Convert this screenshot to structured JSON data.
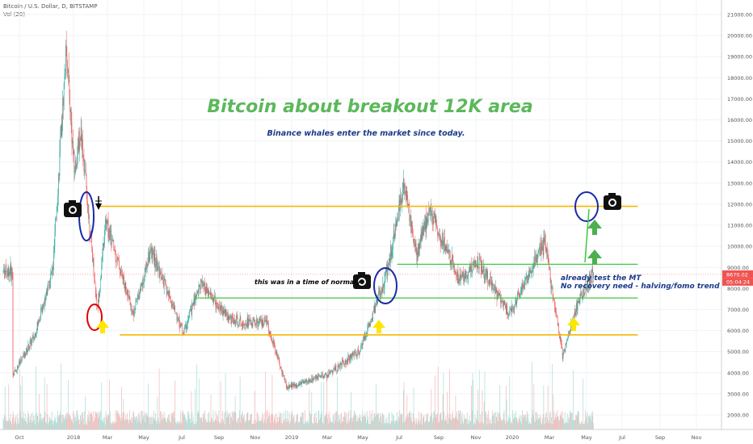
{
  "header": {
    "symbol": "Bitcoin / U.S. Dollar, D, BITSTAMP",
    "volume": "Vol (20)"
  },
  "colors": {
    "up": "#26a69a",
    "down": "#ef5350",
    "orange_line": "#f5b800",
    "green_line": "#3fc93f",
    "circle_blue": "#1a2aa8",
    "circle_red": "#e00000",
    "arrow_yellow": "#ffe600",
    "arrow_green": "#4caf50",
    "price_tag": "#ef5350"
  },
  "chart_data": {
    "type": "candlestick",
    "title": "Bitcoin about breakout 12K area",
    "subtitle": "Binance whales enter the market since today.",
    "x_ticks": [
      "Oct",
      "2018",
      "Mar",
      "May",
      "Jul",
      "Sep",
      "Nov",
      "2019",
      "Mar",
      "May",
      "Jul",
      "Sep",
      "Nov",
      "2020",
      "Mar",
      "May",
      "Jul",
      "Sep",
      "Nov"
    ],
    "y_ticks": [
      2000,
      3000,
      4000,
      5000,
      6000,
      7000,
      8000,
      9000,
      10000,
      11000,
      12000,
      13000,
      14000,
      15000,
      16000,
      17000,
      18000,
      19000,
      20000,
      21000
    ],
    "y_tick_labels": [
      "2000.00",
      "3000.00",
      "4000.00",
      "5000.00",
      "6000.00",
      "7000.00",
      "8000.00",
      "9000.00",
      "10000.00",
      "11000.00",
      "12000.00",
      "13000.00",
      "14000.00",
      "15000.00",
      "16000.00",
      "17000.00",
      "18000.00",
      "19000.00",
      "20000.00",
      "21000.00"
    ],
    "ylim": [
      1500,
      21500
    ],
    "current_price": "8670.02",
    "countdown": "05:04:24",
    "key_points": [
      {
        "date": "2017-09-20",
        "price": 3900
      },
      {
        "date": "2017-10-25",
        "price": 5700
      },
      {
        "date": "2017-11-25",
        "price": 9000
      },
      {
        "date": "2017-12-17",
        "price": 19500
      },
      {
        "date": "2017-12-30",
        "price": 13500
      },
      {
        "date": "2018-01-10",
        "price": 15500
      },
      {
        "date": "2018-02-06",
        "price": 7000
      },
      {
        "date": "2018-02-20",
        "price": 11200
      },
      {
        "date": "2018-04-06",
        "price": 6800
      },
      {
        "date": "2018-05-05",
        "price": 9800
      },
      {
        "date": "2018-06-28",
        "price": 5900
      },
      {
        "date": "2018-07-25",
        "price": 8200
      },
      {
        "date": "2018-09-15",
        "price": 6500
      },
      {
        "date": "2018-11-13",
        "price": 6300
      },
      {
        "date": "2018-12-15",
        "price": 3300
      },
      {
        "date": "2019-02-20",
        "price": 3900
      },
      {
        "date": "2019-04-15",
        "price": 5100
      },
      {
        "date": "2019-05-28",
        "price": 8700
      },
      {
        "date": "2019-06-26",
        "price": 13000
      },
      {
        "date": "2019-07-17",
        "price": 9600
      },
      {
        "date": "2019-08-07",
        "price": 11800
      },
      {
        "date": "2019-09-25",
        "price": 8400
      },
      {
        "date": "2019-10-25",
        "price": 9300
      },
      {
        "date": "2019-12-17",
        "price": 6800
      },
      {
        "date": "2020-02-13",
        "price": 10200
      },
      {
        "date": "2020-03-13",
        "price": 4800
      },
      {
        "date": "2020-04-06",
        "price": 7200
      },
      {
        "date": "2020-05-03",
        "price": 8800
      }
    ],
    "levels": [
      {
        "name": "resistance-12k",
        "price": 11900,
        "from": "2018-02-08",
        "to": "2020-07-15",
        "color": "#f5b800"
      },
      {
        "name": "support-5800",
        "price": 5800,
        "from": "2018-03-15",
        "to": "2020-07-15",
        "color": "#f5b800"
      },
      {
        "name": "mid-9150",
        "price": 9150,
        "from": "2019-06-15",
        "to": "2020-07-15",
        "color": "#3fc93f"
      },
      {
        "name": "mid-7550",
        "price": 7550,
        "from": "2018-07-15",
        "to": "2020-07-15",
        "color": "#3fc93f"
      }
    ]
  },
  "annotations": {
    "note_left": "this was in a time of normaly",
    "note_right_1": "already test the MT",
    "note_right_2": "No recovery need - halving/fomo trend"
  }
}
